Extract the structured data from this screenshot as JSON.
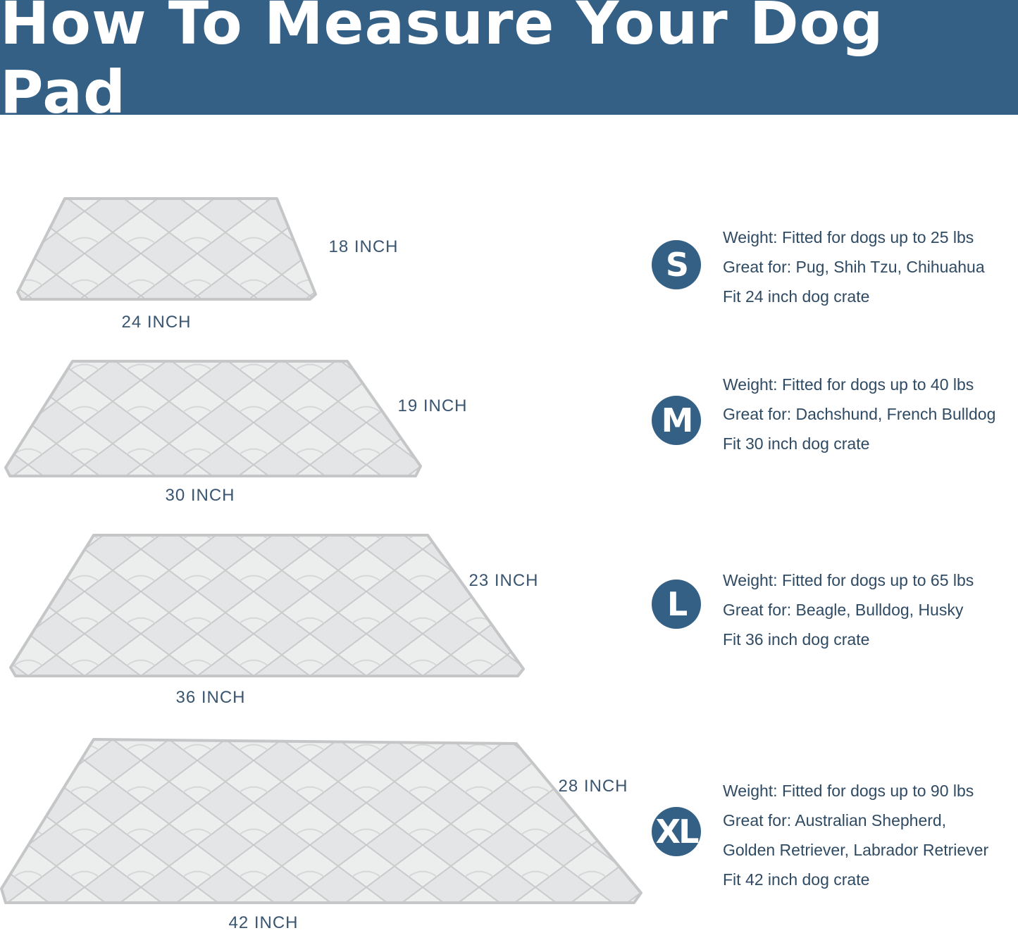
{
  "header": {
    "title": "How To Measure Your Dog Pad"
  },
  "colors": {
    "brand": "#356085",
    "text": "#2f4a63",
    "pad": "#e6e7e9"
  },
  "sizes": [
    {
      "badge": "S",
      "width_label": "18 INCH",
      "length_label": "24 INCH",
      "lines": [
        "Weight: Fitted for dogs up to 25 lbs",
        "Great for: Pug, Shih Tzu, Chihuahua",
        "Fit 24 inch dog crate"
      ]
    },
    {
      "badge": "M",
      "width_label": "19 INCH",
      "length_label": "30 INCH",
      "lines": [
        "Weight: Fitted for dogs up to 40 lbs",
        "Great for: Dachshund, French Bulldog",
        "Fit 30 inch dog crate"
      ]
    },
    {
      "badge": "L",
      "width_label": "23 INCH",
      "length_label": "36 INCH",
      "lines": [
        "Weight: Fitted for dogs up to 65 lbs",
        "Great for: Beagle, Bulldog, Husky",
        "Fit 36 inch dog crate"
      ]
    },
    {
      "badge": "XL",
      "width_label": "28 INCH",
      "length_label": "42 INCH",
      "lines": [
        "Weight: Fitted for dogs up to 90 lbs",
        "Great for: Australian Shepherd,",
        "Golden Retriever, Labrador Retriever",
        "Fit 42 inch dog crate"
      ]
    }
  ]
}
